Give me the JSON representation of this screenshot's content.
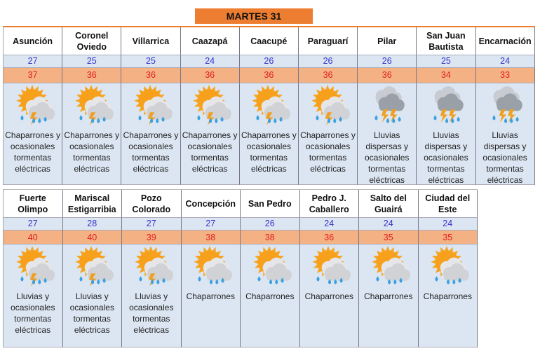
{
  "title": "MARTES 31",
  "rows": [
    [
      {
        "city": "Asunción",
        "min": "27",
        "max": "37",
        "icon": "sun-storm-icon",
        "desc": "Chaparrones y ocasionales tormentas eléctricas"
      },
      {
        "city": "Coronel Oviedo",
        "min": "25",
        "max": "36",
        "icon": "sun-storm-icon",
        "desc": "Chaparrones y ocasionales tormentas eléctricas"
      },
      {
        "city": "Villarrica",
        "min": "25",
        "max": "36",
        "icon": "sun-storm-icon",
        "desc": "Chaparrones y ocasionales tormentas eléctricas"
      },
      {
        "city": "Caazapá",
        "min": "24",
        "max": "36",
        "icon": "sun-storm-icon",
        "desc": "Chaparrones y ocasionales tormentas eléctricas"
      },
      {
        "city": "Caacupé",
        "min": "26",
        "max": "36",
        "icon": "sun-storm-icon",
        "desc": "Chaparrones y ocasionales tormentas eléctricas"
      },
      {
        "city": "Paraguarí",
        "min": "26",
        "max": "36",
        "icon": "sun-storm-icon",
        "desc": "Chaparrones y ocasionales tormentas eléctricas"
      },
      {
        "city": "Pilar",
        "min": "26",
        "max": "36",
        "icon": "storm-cloud-icon",
        "desc": "Lluvias dispersas y ocasionales tormentas eléctricas"
      },
      {
        "city": "San Juan Bautista",
        "min": "25",
        "max": "34",
        "icon": "storm-cloud-icon",
        "desc": "Lluvias dispersas y ocasionales tormentas eléctricas"
      },
      {
        "city": "Encarnación",
        "min": "24",
        "max": "33",
        "icon": "storm-cloud-icon",
        "desc": "Lluvias dispersas y ocasionales tormentas eléctricas"
      }
    ],
    [
      {
        "city": "Fuerte Olimpo",
        "min": "27",
        "max": "40",
        "icon": "sun-storm-icon",
        "desc": "Lluvias y ocasionales tormentas eléctricas"
      },
      {
        "city": "Mariscal Estigarribia",
        "min": "28",
        "max": "40",
        "icon": "sun-storm-icon",
        "desc": "Lluvias y ocasionales tormentas eléctricas"
      },
      {
        "city": "Pozo Colorado",
        "min": "27",
        "max": "39",
        "icon": "sun-storm-icon",
        "desc": "Lluvias y ocasionales tormentas eléctricas"
      },
      {
        "city": "Concepción",
        "min": "27",
        "max": "38",
        "icon": "sun-rain-icon",
        "desc": "Chaparrones"
      },
      {
        "city": "San Pedro",
        "min": "26",
        "max": "38",
        "icon": "sun-rain-icon",
        "desc": "Chaparrones"
      },
      {
        "city": "Pedro J. Caballero",
        "min": "24",
        "max": "36",
        "icon": "sun-rain-icon",
        "desc": "Chaparrones"
      },
      {
        "city": "Salto del Guairá",
        "min": "24",
        "max": "35",
        "icon": "sun-rain-icon",
        "desc": "Chaparrones"
      },
      {
        "city": "Ciudad del Este",
        "min": "24",
        "max": "35",
        "icon": "sun-rain-icon",
        "desc": "Chaparrones"
      }
    ]
  ],
  "colors": {
    "title_bg": "#ed7d31",
    "min_bg": "#dce6f2",
    "max_bg": "#f4b183",
    "min_text": "#3333cc",
    "max_text": "#e02020"
  }
}
